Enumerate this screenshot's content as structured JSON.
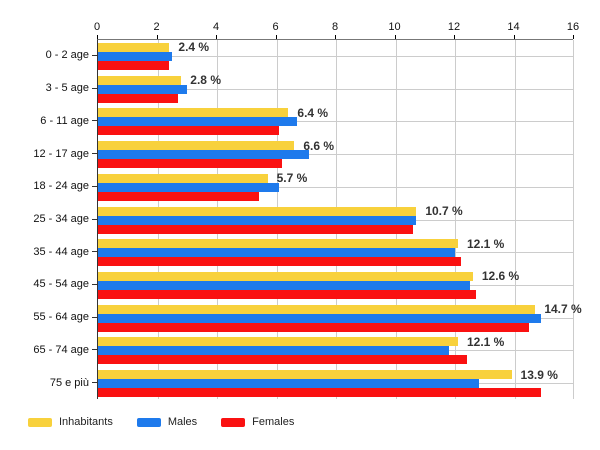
{
  "chart_data": {
    "type": "bar",
    "orientation": "horizontal",
    "title": "",
    "xlabel": "",
    "ylabel": "",
    "xlim": [
      0,
      16
    ],
    "x_ticks": [
      0,
      2,
      4,
      6,
      8,
      10,
      12,
      14,
      16
    ],
    "grid": true,
    "legend_position": "bottom-left",
    "categories": [
      "0 - 2 age",
      "3 - 5 age",
      "6 - 11 age",
      "12 - 17 age",
      "18 - 24 age",
      "25 - 34 age",
      "35 - 44 age",
      "45 - 54 age",
      "55 - 64 age",
      "65 - 74 age",
      "75 e più"
    ],
    "series": [
      {
        "name": "Inhabitants",
        "color": "#F8D13C",
        "values": [
          2.4,
          2.8,
          6.4,
          6.6,
          5.7,
          10.7,
          12.1,
          12.6,
          14.7,
          12.1,
          13.9
        ]
      },
      {
        "name": "Males",
        "color": "#1E7AEC",
        "values": [
          2.5,
          3.0,
          6.7,
          7.1,
          6.1,
          10.7,
          12.0,
          12.5,
          14.9,
          11.8,
          12.8
        ]
      },
      {
        "name": "Females",
        "color": "#FA1111",
        "values": [
          2.4,
          2.7,
          6.1,
          6.2,
          5.4,
          10.6,
          12.2,
          12.7,
          14.5,
          12.4,
          14.9
        ]
      }
    ],
    "value_labels": [
      "2.4 %",
      "2.8 %",
      "6.4 %",
      "6.6 %",
      "5.7 %",
      "10.7 %",
      "12.1 %",
      "12.6 %",
      "14.7 %",
      "12.1 %",
      "13.9 %"
    ]
  },
  "colors": {
    "grid": "#CCCCCC",
    "axis_top": "#777777",
    "axis_left": "#333333",
    "tick": "#000000",
    "value_label": "#333333",
    "background": "#FFFFFF"
  }
}
